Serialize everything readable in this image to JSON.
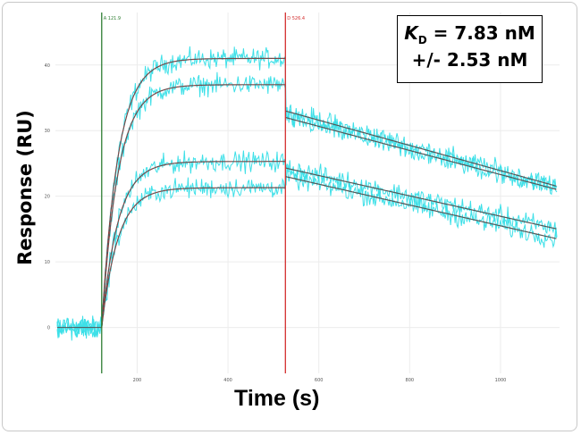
{
  "annotation": {
    "kd_symbol": "K",
    "kd_subscript": "D",
    "kd_value": "= 7.83 nM",
    "kd_error": "+/- 2.53 nM"
  },
  "chart_data": {
    "type": "line",
    "title": "",
    "xlabel": "Time (s)",
    "ylabel": "Response (RU)",
    "xlim": [
      20,
      1130
    ],
    "ylim": [
      -7,
      48
    ],
    "xticks": [
      200,
      400,
      600,
      800,
      1000
    ],
    "yticks": [
      0,
      10,
      20,
      30,
      40
    ],
    "grid": true,
    "markers": [
      {
        "label": "A 121.9",
        "x": 121.9,
        "color": "#2e7d32"
      },
      {
        "label": "D 526.4",
        "x": 526.4,
        "color": "#d32f2f"
      }
    ],
    "injection_start": 121.9,
    "dissociation_start": 526.4,
    "baseline": 0,
    "series": [
      {
        "plateau": 41.0,
        "diss_start": 33.0,
        "diss_end": 21.5
      },
      {
        "plateau": 37.0,
        "diss_start": 32.0,
        "diss_end": 21.0
      },
      {
        "plateau": 25.3,
        "diss_start": 24.3,
        "diss_end": 15.0
      },
      {
        "plateau": 21.3,
        "diss_start": 23.0,
        "diss_end": 13.5
      }
    ],
    "colors": {
      "raw": "#3ee0e8",
      "fit": "#b03a3a",
      "fit_dark": "#555555"
    }
  }
}
